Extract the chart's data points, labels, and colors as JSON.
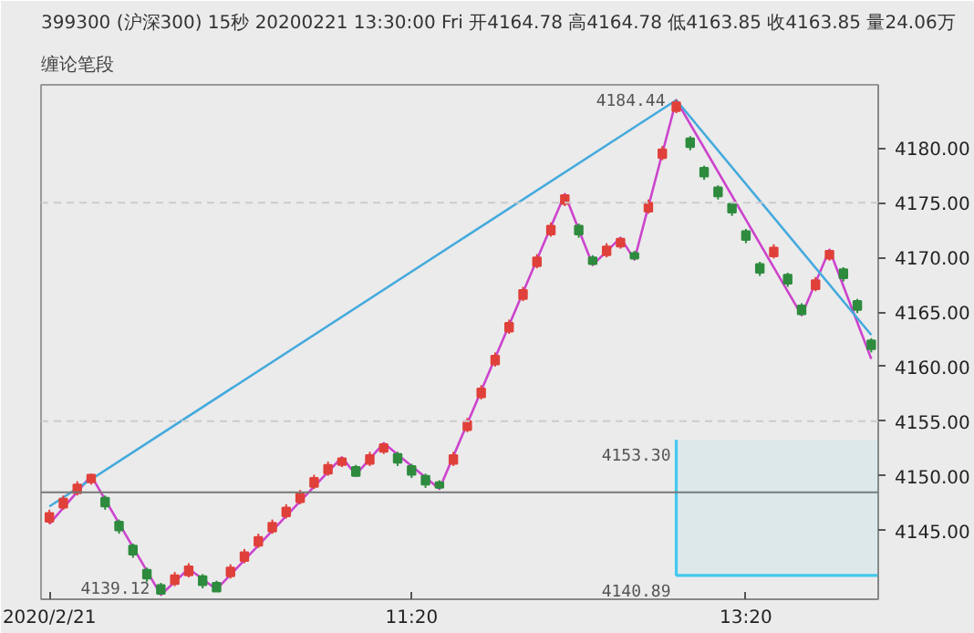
{
  "chart_data": {
    "type": "candlestick",
    "title": "399300 (沪深300) 15秒 20200221 13:30:00 Fri    开4164.78 高4164.78 低4163.85 收4163.85 量24.06万",
    "subtitle": "缠论笔段",
    "categories": [
      "2020/2/21",
      null,
      null,
      null,
      null,
      null,
      null,
      null,
      null,
      null,
      null,
      null,
      null,
      null,
      null,
      null,
      null,
      null,
      null,
      null,
      null,
      null,
      null,
      null,
      null,
      null,
      "11:20",
      null,
      null,
      null,
      null,
      null,
      null,
      null,
      null,
      null,
      null,
      null,
      null,
      null,
      null,
      null,
      null,
      null,
      null,
      null,
      null,
      null,
      null,
      null,
      "13:20",
      null,
      null,
      null,
      null,
      null,
      null,
      null,
      null,
      null
    ],
    "ohlc": [
      [
        4145.8,
        4146.9,
        4145.6,
        4146.6
      ],
      [
        4147.1,
        4148.2,
        4146.9,
        4147.9
      ],
      [
        4148.4,
        4149.5,
        4148.2,
        4149.2
      ],
      [
        4149.4,
        4150.2,
        4149.2,
        4150.1
      ],
      [
        4148.0,
        4148.2,
        4146.9,
        4147.2
      ],
      [
        4145.8,
        4146.0,
        4144.7,
        4145.0
      ],
      [
        4143.6,
        4143.8,
        4142.5,
        4142.8
      ],
      [
        4141.4,
        4141.6,
        4140.3,
        4140.6
      ],
      [
        4140.0,
        4140.2,
        4139.12,
        4139.2
      ],
      [
        4140.1,
        4141.2,
        4139.9,
        4140.9
      ],
      [
        4140.9,
        4142.0,
        4140.7,
        4141.7
      ],
      [
        4140.8,
        4141.0,
        4139.7,
        4140.0
      ],
      [
        4140.2,
        4140.4,
        4139.4,
        4139.4
      ],
      [
        4140.8,
        4141.9,
        4140.6,
        4141.6
      ],
      [
        4142.2,
        4143.3,
        4142.0,
        4143.0
      ],
      [
        4143.6,
        4144.7,
        4143.4,
        4144.4
      ],
      [
        4144.9,
        4146.0,
        4144.7,
        4145.7
      ],
      [
        4146.3,
        4147.4,
        4146.1,
        4147.1
      ],
      [
        4147.6,
        4148.7,
        4147.4,
        4148.4
      ],
      [
        4149.0,
        4150.1,
        4148.8,
        4149.8
      ],
      [
        4150.2,
        4151.3,
        4150.0,
        4151.0
      ],
      [
        4151.0,
        4151.7,
        4150.8,
        4151.6
      ],
      [
        4150.8,
        4151.0,
        4149.9,
        4150.0
      ],
      [
        4151.1,
        4152.2,
        4150.9,
        4151.9
      ],
      [
        4152.2,
        4153.0,
        4152.0,
        4152.9
      ],
      [
        4152.0,
        4152.2,
        4150.9,
        4151.2
      ],
      [
        4150.9,
        4151.1,
        4149.8,
        4150.1
      ],
      [
        4150.0,
        4150.2,
        4148.9,
        4149.2
      ],
      [
        4149.4,
        4149.6,
        4148.8,
        4148.9
      ],
      [
        4151.1,
        4152.2,
        4150.9,
        4151.9
      ],
      [
        4154.2,
        4155.3,
        4154.0,
        4155.0
      ],
      [
        4157.2,
        4158.3,
        4157.0,
        4158.0
      ],
      [
        4160.2,
        4161.3,
        4160.0,
        4161.0
      ],
      [
        4163.2,
        4164.3,
        4163.0,
        4164.0
      ],
      [
        4166.2,
        4167.3,
        4166.0,
        4167.0
      ],
      [
        4169.2,
        4170.3,
        4169.0,
        4170.0
      ],
      [
        4172.1,
        4173.2,
        4171.9,
        4172.9
      ],
      [
        4174.9,
        4175.8,
        4174.7,
        4175.7
      ],
      [
        4172.9,
        4173.1,
        4171.8,
        4172.1
      ],
      [
        4170.0,
        4170.2,
        4169.3,
        4169.4
      ],
      [
        4170.2,
        4171.3,
        4170.0,
        4171.0
      ],
      [
        4171.0,
        4171.8,
        4170.8,
        4171.7
      ],
      [
        4170.4,
        4170.6,
        4169.8,
        4169.9
      ],
      [
        4174.2,
        4175.3,
        4174.0,
        4175.0
      ],
      [
        4179.1,
        4180.2,
        4178.9,
        4179.9
      ],
      [
        4183.4,
        4184.44,
        4183.2,
        4184.2
      ],
      [
        4180.9,
        4181.1,
        4179.8,
        4180.1
      ],
      [
        4178.2,
        4178.4,
        4177.1,
        4177.4
      ],
      [
        4176.4,
        4176.6,
        4175.3,
        4175.6
      ],
      [
        4174.9,
        4175.1,
        4173.8,
        4174.1
      ],
      [
        4172.4,
        4172.6,
        4171.3,
        4171.6
      ],
      [
        4169.4,
        4169.6,
        4168.3,
        4168.6
      ],
      [
        4170.1,
        4171.2,
        4169.9,
        4170.9
      ],
      [
        4168.4,
        4168.6,
        4167.3,
        4167.6
      ],
      [
        4165.6,
        4165.8,
        4164.7,
        4164.8
      ],
      [
        4167.1,
        4168.2,
        4166.9,
        4167.9
      ],
      [
        4169.9,
        4170.7,
        4169.7,
        4170.6
      ],
      [
        4168.9,
        4169.1,
        4167.8,
        4168.1
      ],
      [
        4166.0,
        4166.2,
        4164.9,
        4165.2
      ],
      [
        4162.4,
        4162.6,
        4161.3,
        4161.6
      ]
    ],
    "colors": [
      "#e0403a",
      "#e0403a",
      "#e0403a",
      "#e0403a",
      "#2e8b3e",
      "#2e8b3e",
      "#2e8b3e",
      "#2e8b3e",
      "#2e8b3e",
      "#e0403a",
      "#e0403a",
      "#2e8b3e",
      "#2e8b3e",
      "#e0403a",
      "#e0403a",
      "#e0403a",
      "#e0403a",
      "#e0403a",
      "#e0403a",
      "#e0403a",
      "#e0403a",
      "#e0403a",
      "#2e8b3e",
      "#e0403a",
      "#e0403a",
      "#2e8b3e",
      "#2e8b3e",
      "#2e8b3e",
      "#2e8b3e",
      "#e0403a",
      "#e0403a",
      "#e0403a",
      "#e0403a",
      "#e0403a",
      "#e0403a",
      "#e0403a",
      "#e0403a",
      "#e0403a",
      "#2e8b3e",
      "#2e8b3e",
      "#e0403a",
      "#e0403a",
      "#2e8b3e",
      "#e0403a",
      "#e0403a",
      "#e0403a",
      "#2e8b3e",
      "#2e8b3e",
      "#2e8b3e",
      "#2e8b3e",
      "#2e8b3e",
      "#2e8b3e",
      "#e0403a",
      "#2e8b3e",
      "#2e8b3e",
      "#e0403a",
      "#e0403a",
      "#2e8b3e",
      "#2e8b3e",
      "#2e8b3e"
    ],
    "series": [
      {
        "type": "line",
        "color": "#cc44cc",
        "values": [
          4145.6,
          null,
          null,
          4150.0,
          null,
          null,
          null,
          null,
          4139.1,
          null,
          4141.5,
          null,
          4139.6,
          null,
          null,
          null,
          null,
          null,
          null,
          null,
          null,
          4151.7,
          4150.1,
          null,
          4153.0,
          null,
          null,
          null,
          4148.8,
          null,
          null,
          null,
          null,
          null,
          null,
          null,
          null,
          4175.8,
          null,
          4169.3,
          null,
          4171.8,
          4169.8,
          null,
          null,
          4184.4,
          null,
          null,
          null,
          null,
          null,
          null,
          null,
          null,
          4164.7,
          null,
          4170.7,
          null,
          null,
          4160.7
        ]
      },
      {
        "type": "line",
        "color": "#44aadd",
        "values": [
          4147.2,
          null,
          null,
          null,
          null,
          null,
          null,
          null,
          null,
          null,
          null,
          null,
          null,
          null,
          null,
          null,
          null,
          null,
          null,
          null,
          null,
          null,
          null,
          null,
          null,
          null,
          null,
          null,
          null,
          null,
          null,
          null,
          null,
          null,
          null,
          null,
          null,
          null,
          null,
          null,
          null,
          null,
          null,
          null,
          null,
          4184.4,
          null,
          null,
          null,
          null,
          null,
          null,
          null,
          null,
          null,
          null,
          null,
          null,
          null,
          4162.9
        ]
      }
    ],
    "bands": [
      {
        "axis": "y",
        "from": 4140.89,
        "to": 4153.3,
        "color": "#44c8ee"
      }
    ],
    "ref_lines": [
      {
        "axis": "y",
        "value": 4148.5,
        "color": "#777777",
        "line_style": "solid"
      },
      {
        "axis": "y",
        "value": 4175,
        "color": "#cccccc",
        "line_style": "dashed"
      },
      {
        "axis": "y",
        "value": 4155,
        "color": "#cccccc",
        "line_style": "dashed"
      }
    ],
    "annotations": [
      "4184.44",
      "4139.12",
      "4153.30",
      "4140.89"
    ],
    "ylim": [
      4138.7,
      4185.8
    ],
    "yticks": [
      {
        "value": 4145,
        "label": "4145.00"
      },
      {
        "value": 4150,
        "label": "4150.00"
      },
      {
        "value": 4155,
        "label": "4155.00"
      },
      {
        "value": 4160,
        "label": "4160.00"
      },
      {
        "value": 4165,
        "label": "4165.00"
      },
      {
        "value": 4170,
        "label": "4170.00"
      },
      {
        "value": 4175,
        "label": "4175.00"
      },
      {
        "value": 4180,
        "label": "4180.00"
      }
    ],
    "grid": false
  }
}
